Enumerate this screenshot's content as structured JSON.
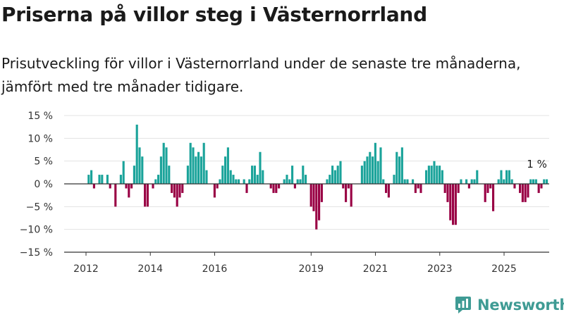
{
  "title": "Priserna på villor steg i Västernorrland",
  "subtitle": "Prisutveckling för villor i Västernorrland under de senaste tre månaderna, jämfört med tre månader tidigare.",
  "brand": "Newsworthy",
  "colors": {
    "positive": "#1aa39a",
    "negative": "#990044",
    "grid": "#e3e3e3",
    "zero": "#333333",
    "axis": "#333333"
  },
  "chart_data": {
    "type": "bar",
    "unit": "%",
    "ylim": [
      -15,
      15
    ],
    "yticks": [
      {
        "value": 15,
        "label": "15 %"
      },
      {
        "value": 10,
        "label": "10 %"
      },
      {
        "value": 5,
        "label": "5 %"
      },
      {
        "value": 0,
        "label": "0 %"
      },
      {
        "value": -5,
        "label": "−5 %"
      },
      {
        "value": -10,
        "label": "−10 %"
      },
      {
        "value": -15,
        "label": "−15 %"
      }
    ],
    "xticks": [
      {
        "x": 2012,
        "label": "2012"
      },
      {
        "x": 2014,
        "label": "2014"
      },
      {
        "x": 2016,
        "label": "2016"
      },
      {
        "x": 2019,
        "label": "2019"
      },
      {
        "x": 2021,
        "label": "2021"
      },
      {
        "x": 2023,
        "label": "2023"
      },
      {
        "x": 2025,
        "label": "2025"
      }
    ],
    "x_range": [
      2011.5,
      2026.2
    ],
    "start": 2012.0,
    "step": 0.0833,
    "values": [
      0,
      2,
      3,
      -1,
      0,
      2,
      2,
      0,
      2,
      -1,
      0,
      -5,
      0,
      2,
      5,
      -1,
      -3,
      -1,
      4,
      13,
      8,
      6,
      -5,
      -5,
      0,
      -1,
      1,
      2,
      6,
      9,
      8,
      4,
      -2,
      -3,
      -5,
      -3,
      -2,
      0,
      4,
      9,
      8,
      6,
      7,
      6,
      9,
      3,
      0,
      0,
      -3,
      -1,
      1,
      4,
      6,
      8,
      3,
      2,
      1,
      1,
      0,
      1,
      -2,
      1,
      4,
      4,
      2,
      7,
      3,
      0,
      0,
      -1,
      -2,
      -2,
      -1,
      0,
      1,
      2,
      1,
      4,
      -1,
      1,
      1,
      4,
      2,
      0,
      -5,
      -6,
      -10,
      -8,
      -4,
      0,
      1,
      2,
      4,
      3,
      4,
      5,
      -1,
      -4,
      -1,
      -5,
      0,
      0,
      0,
      4,
      5,
      6,
      7,
      6,
      9,
      5,
      8,
      1,
      -2,
      -3,
      0,
      2,
      7,
      6,
      8,
      1,
      1,
      0,
      1,
      -2,
      -1,
      -2,
      0,
      3,
      4,
      4,
      5,
      4,
      4,
      3,
      -2,
      -4,
      -8,
      -9,
      -9,
      -2,
      1,
      0,
      1,
      -1,
      1,
      1,
      3,
      0,
      0,
      -4,
      -2,
      -1,
      -6,
      0,
      1,
      3,
      1,
      3,
      3,
      1,
      -1,
      0,
      -2,
      -4,
      -4,
      -3,
      1,
      1,
      1,
      -2,
      -1,
      1,
      1
    ],
    "annotation": {
      "label": "1 %"
    }
  }
}
